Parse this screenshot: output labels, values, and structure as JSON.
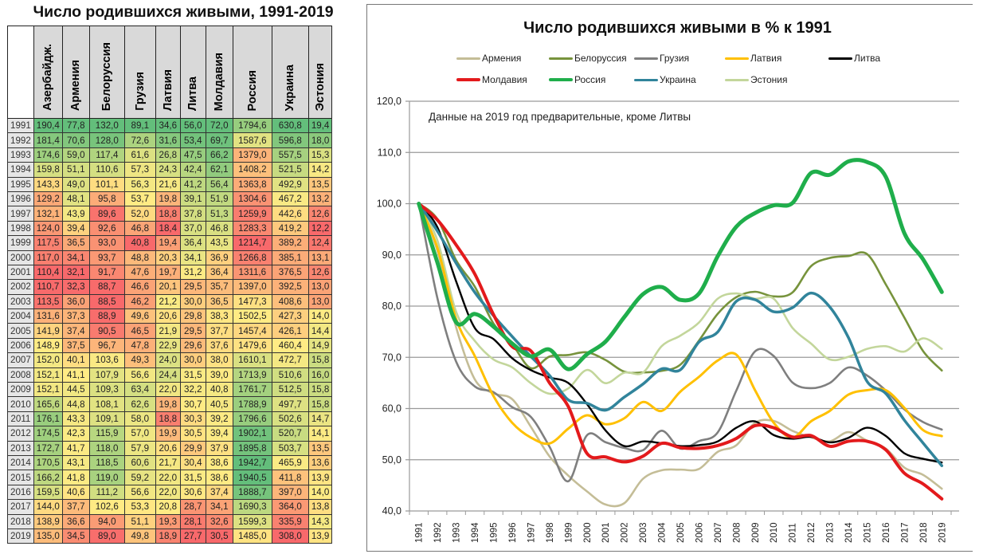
{
  "table": {
    "title": "Число родившихся живыми, 1991-2019",
    "columns": [
      "Азербайдж.",
      "Армения",
      "Белоруссия",
      "Грузия",
      "Латвия",
      "Литва",
      "Молдавия",
      "Россия",
      "Украина",
      "Эстония"
    ],
    "rows": [
      {
        "year": "1991",
        "values": [
          "190,4",
          "77,8",
          "132,0",
          "89,1",
          "34,6",
          "56,0",
          "72,0",
          "1794,6",
          "630,8",
          "19,4"
        ]
      },
      {
        "year": "1992",
        "values": [
          "181,4",
          "70,6",
          "128,0",
          "72,6",
          "31,6",
          "53,4",
          "69,7",
          "1587,6",
          "596,8",
          "18,0"
        ]
      },
      {
        "year": "1993",
        "values": [
          "174,6",
          "59,0",
          "117,4",
          "61,6",
          "26,8",
          "47,5",
          "66,2",
          "1379,0",
          "557,5",
          "15,3"
        ]
      },
      {
        "year": "1994",
        "values": [
          "159,8",
          "51,1",
          "110,6",
          "57,3",
          "24,3",
          "42,4",
          "62,1",
          "1408,2",
          "521,5",
          "14,2"
        ]
      },
      {
        "year": "1995",
        "values": [
          "143,3",
          "49,0",
          "101,1",
          "56,3",
          "21,6",
          "41,2",
          "56,4",
          "1363,8",
          "492,9",
          "13,5"
        ]
      },
      {
        "year": "1996",
        "values": [
          "129,2",
          "48,1",
          "95,8",
          "53,7",
          "19,8",
          "39,1",
          "51,9",
          "1304,6",
          "467,2",
          "13,2"
        ]
      },
      {
        "year": "1997",
        "values": [
          "132,1",
          "43,9",
          "89,6",
          "52,0",
          "18,8",
          "37,8",
          "51,3",
          "1259,9",
          "442,6",
          "12,6"
        ]
      },
      {
        "year": "1998",
        "values": [
          "124,0",
          "39,4",
          "92,6",
          "46,8",
          "18,4",
          "37,0",
          "46,8",
          "1283,3",
          "419,2",
          "12,2"
        ]
      },
      {
        "year": "1999",
        "values": [
          "117,5",
          "36,5",
          "93,0",
          "40,8",
          "19,4",
          "36,4",
          "43,5",
          "1214,7",
          "389,2",
          "12,4"
        ]
      },
      {
        "year": "2000",
        "values": [
          "117,0",
          "34,1",
          "93,7",
          "48,8",
          "20,3",
          "34,1",
          "36,9",
          "1266,8",
          "385,1",
          "13,1"
        ]
      },
      {
        "year": "2001",
        "values": [
          "110,4",
          "32,1",
          "91,7",
          "47,6",
          "19,7",
          "31,2",
          "36,4",
          "1311,6",
          "376,5",
          "12,6"
        ]
      },
      {
        "year": "2002",
        "values": [
          "110,7",
          "32,3",
          "88,7",
          "46,6",
          "20,1",
          "29,5",
          "35,7",
          "1397,0",
          "392,5",
          "13,0"
        ]
      },
      {
        "year": "2003",
        "values": [
          "113,5",
          "36,0",
          "88,5",
          "46,2",
          "21,2",
          "30,0",
          "36,5",
          "1477,3",
          "408,6",
          "13,0"
        ]
      },
      {
        "year": "2004",
        "values": [
          "131,6",
          "37,3",
          "88,9",
          "49,6",
          "20,6",
          "29,8",
          "38,3",
          "1502,5",
          "427,3",
          "14,0"
        ]
      },
      {
        "year": "2005",
        "values": [
          "141,9",
          "37,4",
          "90,5",
          "46,5",
          "21,9",
          "29,5",
          "37,7",
          "1457,4",
          "426,1",
          "14,4"
        ]
      },
      {
        "year": "2006",
        "values": [
          "148,9",
          "37,5",
          "96,7",
          "47,8",
          "22,9",
          "29,6",
          "37,6",
          "1479,6",
          "460,4",
          "14,9"
        ]
      },
      {
        "year": "2007",
        "values": [
          "152,0",
          "40,1",
          "103,6",
          "49,3",
          "24,0",
          "30,0",
          "38,0",
          "1610,1",
          "472,7",
          "15,8"
        ]
      },
      {
        "year": "2008",
        "values": [
          "152,1",
          "41,1",
          "107,9",
          "56,6",
          "24,4",
          "31,5",
          "39,0",
          "1713,9",
          "510,6",
          "16,0"
        ]
      },
      {
        "year": "2009",
        "values": [
          "152,1",
          "44,5",
          "109,3",
          "63,4",
          "22,0",
          "32,2",
          "40,8",
          "1761,7",
          "512,5",
          "15,8"
        ]
      },
      {
        "year": "2010",
        "values": [
          "165,6",
          "44,8",
          "108,1",
          "62,6",
          "19,8",
          "30,7",
          "40,5",
          "1788,9",
          "497,7",
          "15,8"
        ]
      },
      {
        "year": "2011",
        "values": [
          "176,1",
          "43,3",
          "109,1",
          "58,0",
          "18,8",
          "30,3",
          "39,2",
          "1796,6",
          "502,6",
          "14,7"
        ]
      },
      {
        "year": "2012",
        "values": [
          "174,5",
          "42,3",
          "115,9",
          "57,0",
          "19,9",
          "30,5",
          "39,4",
          "1902,1",
          "520,7",
          "14,1"
        ]
      },
      {
        "year": "2013",
        "values": [
          "172,7",
          "41,7",
          "118,0",
          "57,9",
          "20,6",
          "29,9",
          "37,9",
          "1895,8",
          "503,7",
          "13,5"
        ]
      },
      {
        "year": "2014",
        "values": [
          "170,5",
          "43,1",
          "118,5",
          "60,6",
          "21,7",
          "30,4",
          "38,6",
          "1942,7",
          "465,9",
          "13,6"
        ]
      },
      {
        "year": "2015",
        "values": [
          "166,2",
          "41,8",
          "119,0",
          "59,2",
          "22,0",
          "31,5",
          "38,6",
          "1940,5",
          "411,8",
          "13,9"
        ]
      },
      {
        "year": "2016",
        "values": [
          "159,5",
          "40,6",
          "111,2",
          "56,6",
          "22,0",
          "30,6",
          "37,4",
          "1888,7",
          "397,0",
          "14,0"
        ]
      },
      {
        "year": "2017",
        "values": [
          "144,0",
          "37,7",
          "102,6",
          "53,3",
          "20,8",
          "28,7",
          "34,1",
          "1690,3",
          "364,0",
          "13,8"
        ]
      },
      {
        "year": "2018",
        "values": [
          "138,9",
          "36,6",
          "94,0",
          "51,1",
          "19,3",
          "28,1",
          "32,6",
          "1599,3",
          "335,9",
          "14,3"
        ]
      },
      {
        "year": "2019",
        "values": [
          "135,0",
          "34,5",
          "89,0",
          "49,8",
          "18,9",
          "27,7",
          "30,5",
          "1485,0",
          "308,0",
          "13,9"
        ]
      }
    ],
    "heat_colors": {
      "low": "#f8696b",
      "mid": "#ffeb84",
      "high": "#63be7b"
    }
  },
  "chart_data": {
    "type": "line",
    "title": "Число родившихся живыми в % к 1991",
    "annotation": "Данные на 2019  год предварительные, кроме Литвы",
    "xlabel": "",
    "ylabel": "",
    "ylim": [
      40,
      120
    ],
    "yticks": [
      "40,0",
      "50,0",
      "60,0",
      "70,0",
      "80,0",
      "90,0",
      "100,0",
      "110,0",
      "120,0"
    ],
    "grid": true,
    "legend_position": "top",
    "x": [
      "1991",
      "1992",
      "1993",
      "1994",
      "1995",
      "1996",
      "1997",
      "1998",
      "1999",
      "2000",
      "2001",
      "2002",
      "2003",
      "2004",
      "2005",
      "2006",
      "2007",
      "2008",
      "2009",
      "2010",
      "2011",
      "2012",
      "2013",
      "2014",
      "2015",
      "2016",
      "2017",
      "2018",
      "2019"
    ],
    "series": [
      {
        "name": "Армения",
        "color": "#c4bd97",
        "source_column": 1
      },
      {
        "name": "Белоруссия",
        "color": "#77933c",
        "source_column": 2
      },
      {
        "name": "Грузия",
        "color": "#7f7f7f",
        "source_column": 3
      },
      {
        "name": "Латвия",
        "color": "#ffc000",
        "source_column": 4
      },
      {
        "name": "Литва",
        "color": "#000000",
        "source_column": 5
      },
      {
        "name": "Молдавия",
        "color": "#e31a1c",
        "source_column": 6
      },
      {
        "name": "Россия",
        "color": "#1fae4b",
        "source_column": 7
      },
      {
        "name": "Украина",
        "color": "#31849b",
        "source_column": 8
      },
      {
        "name": "Эстония",
        "color": "#c3d69b",
        "source_column": 9
      }
    ],
    "value_rule": "value(year) / value(1991) * 100 from table column"
  }
}
